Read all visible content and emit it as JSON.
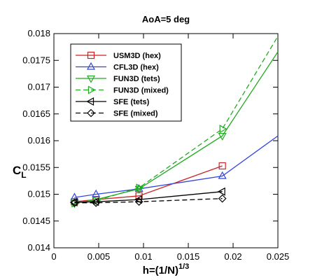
{
  "chart_data": {
    "type": "line",
    "title": "AoA=5 deg",
    "xlabel": "h=(1/N)",
    "xlabel_sup": "1/3",
    "ylabel": "C",
    "ylabel_sub": "L",
    "xlim": [
      0,
      0.025
    ],
    "ylim": [
      0.014,
      0.018
    ],
    "xticks": [
      0,
      0.005,
      0.01,
      0.015,
      0.02,
      0.025
    ],
    "xtick_labels": [
      "0",
      "0.005",
      "0.01",
      "0.015",
      "0.02",
      "0.025"
    ],
    "yticks": [
      0.014,
      0.0145,
      0.015,
      0.0155,
      0.016,
      0.0165,
      0.017,
      0.0175,
      0.018
    ],
    "ytick_labels": [
      "0.014",
      "0.0145",
      "0.015",
      "0.0155",
      "0.016",
      "0.0165",
      "0.017",
      "0.0175",
      "0.018"
    ],
    "grid": false,
    "legend_position": "top-left",
    "series": [
      {
        "name": "USM3D (hex)",
        "color": "#cc2222",
        "marker": "square",
        "dash": "solid",
        "points": [
          [
            0.0023,
            0.01486
          ],
          [
            0.0047,
            0.0149
          ],
          [
            0.0095,
            0.01497
          ],
          [
            0.0188,
            0.01553
          ]
        ]
      },
      {
        "name": "CFL3D (hex)",
        "color": "#3344dd",
        "marker": "triangle-up",
        "dash": "solid",
        "points": [
          [
            0.0023,
            0.01494
          ],
          [
            0.0047,
            0.015
          ],
          [
            0.0095,
            0.0151
          ],
          [
            0.0188,
            0.01534
          ],
          [
            0.025,
            0.01609
          ]
        ]
      },
      {
        "name": "FUN3D (tets)",
        "color": "#22aa22",
        "marker": "triangle-down",
        "dash": "solid",
        "points": [
          [
            0.0023,
            0.01483
          ],
          [
            0.0047,
            0.0149
          ],
          [
            0.0095,
            0.0151
          ],
          [
            0.0188,
            0.01609
          ],
          [
            0.025,
            0.01766
          ]
        ]
      },
      {
        "name": "FUN3D (mixed)",
        "color": "#22aa22",
        "marker": "triangle-right",
        "dash": "dashed",
        "points": [
          [
            0.0023,
            0.01483
          ],
          [
            0.0047,
            0.01488
          ],
          [
            0.0095,
            0.01512
          ],
          [
            0.0188,
            0.01622
          ],
          [
            0.025,
            0.01795
          ]
        ]
      },
      {
        "name": "SFE (tets)",
        "color": "#000000",
        "marker": "triangle-left",
        "dash": "solid",
        "points": [
          [
            0.0023,
            0.01485
          ],
          [
            0.0047,
            0.01486
          ],
          [
            0.0095,
            0.0149
          ],
          [
            0.0188,
            0.01505
          ]
        ]
      },
      {
        "name": "SFE (mixed)",
        "color": "#000000",
        "marker": "diamond",
        "dash": "dashed",
        "points": [
          [
            0.0023,
            0.01484
          ],
          [
            0.0047,
            0.01484
          ],
          [
            0.0095,
            0.01486
          ],
          [
            0.0188,
            0.01492
          ]
        ]
      }
    ]
  }
}
